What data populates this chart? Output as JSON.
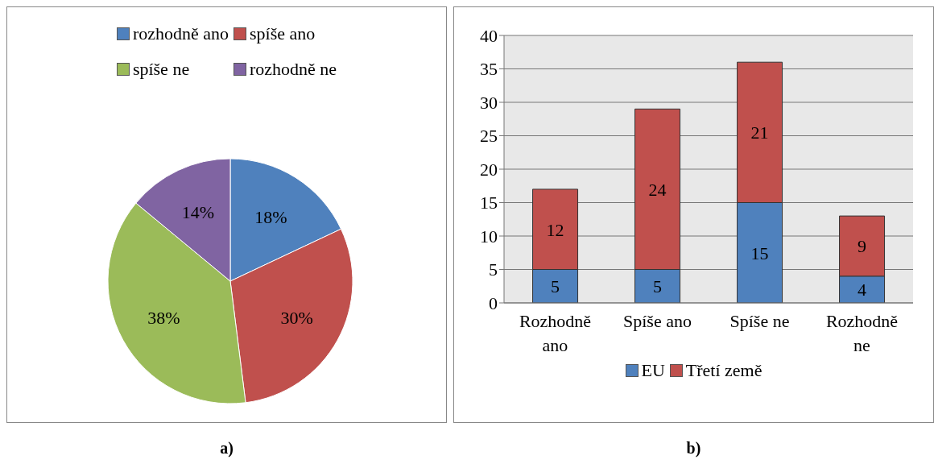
{
  "chart_data": [
    {
      "type": "pie",
      "categories": [
        "rozhodně ano",
        "spíše ano",
        "spíše ne",
        "rozhodně ne"
      ],
      "values": [
        18,
        30,
        38,
        14
      ],
      "colors": [
        "#4f81bd",
        "#c0504d",
        "#9bbb59",
        "#8064a2"
      ],
      "value_labels": [
        "18%",
        "30%",
        "38%",
        "14%"
      ],
      "legend": "top",
      "annotations": [
        "a)"
      ]
    },
    {
      "type": "bar",
      "stacked": true,
      "categories": [
        "Rozhodně ano",
        "Spíše ano",
        "Spíše ne",
        "Rozhodně ne"
      ],
      "series": [
        {
          "name": "EU",
          "color": "#4f81bd",
          "values": [
            5,
            5,
            15,
            4
          ]
        },
        {
          "name": "Třetí země",
          "color": "#c0504d",
          "values": [
            12,
            24,
            21,
            9
          ]
        }
      ],
      "ylim": [
        0,
        40
      ],
      "yticks": [
        0,
        5,
        10,
        15,
        20,
        25,
        30,
        35,
        40
      ],
      "grid": "y",
      "legend": "bottom",
      "data_labels": true,
      "annotations": [
        "b)"
      ]
    }
  ]
}
